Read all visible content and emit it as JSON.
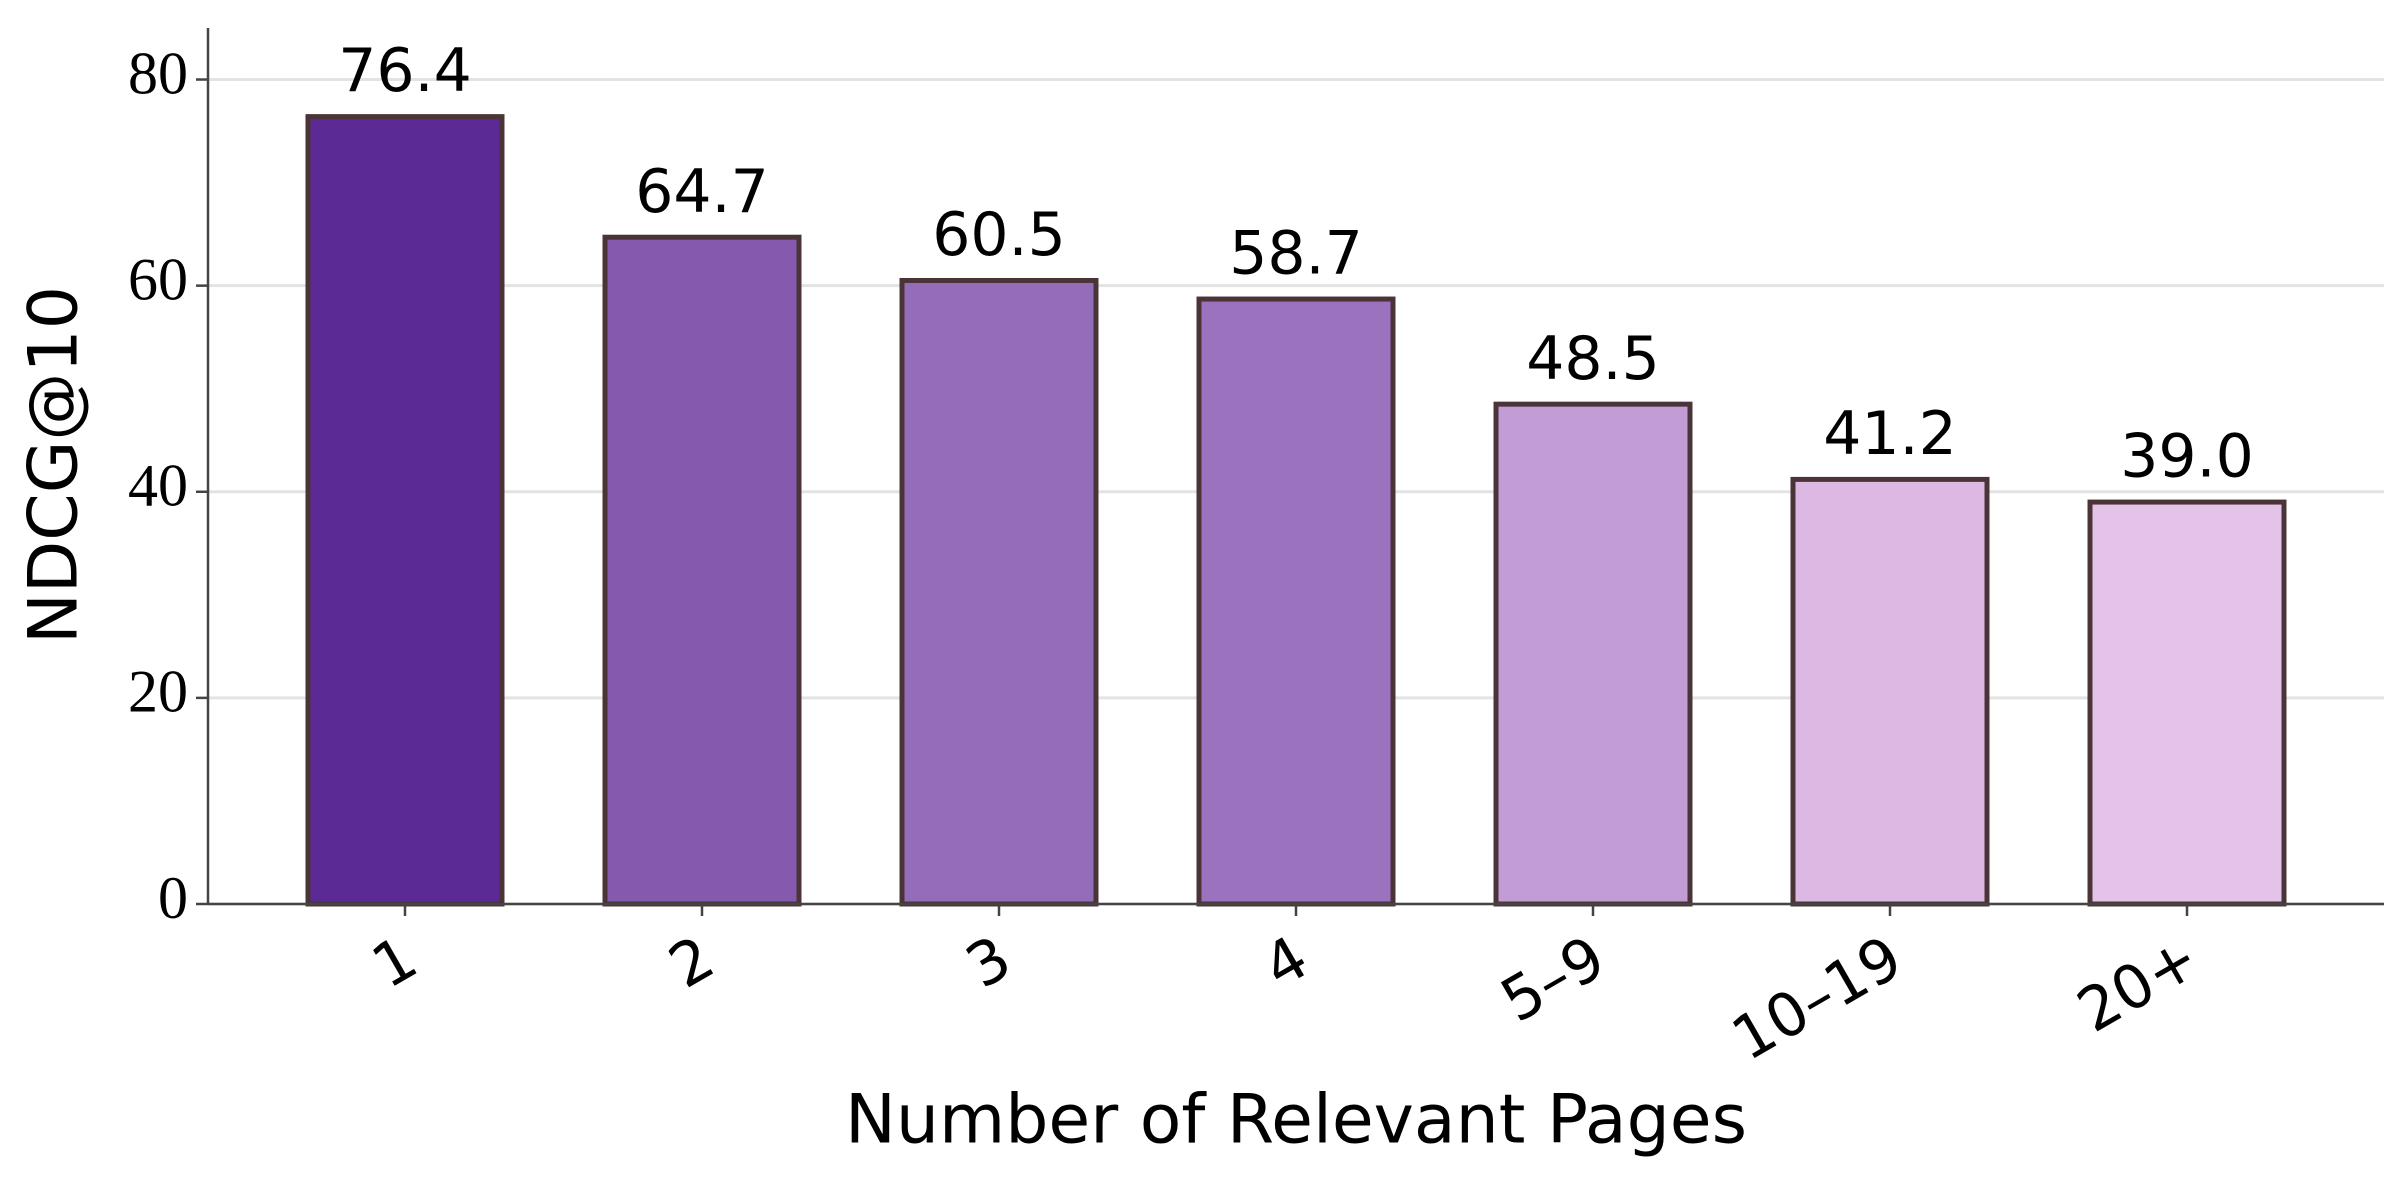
{
  "chart_data": {
    "type": "bar",
    "x_label": "Number of Relevant Pages",
    "y_label": "NDCG@10",
    "categories": [
      "1",
      "2",
      "3",
      "4",
      "5–9",
      "10–19",
      "20+"
    ],
    "values": [
      76.4,
      64.7,
      60.5,
      58.7,
      48.5,
      41.2,
      39.0
    ],
    "value_labels": [
      "76.4",
      "64.7",
      "60.5",
      "58.7",
      "48.5",
      "41.2",
      "39.0"
    ],
    "colors": [
      "#5b2a94",
      "#8559ad",
      "#946dba",
      "#9a72be",
      "#c29cd4",
      "#dcb8e2",
      "#e4c3e8"
    ],
    "edge_color": "#4b3438",
    "ylim": [
      0,
      85
    ],
    "yticks": [
      0,
      20,
      40,
      60,
      80
    ],
    "grid": true
  }
}
